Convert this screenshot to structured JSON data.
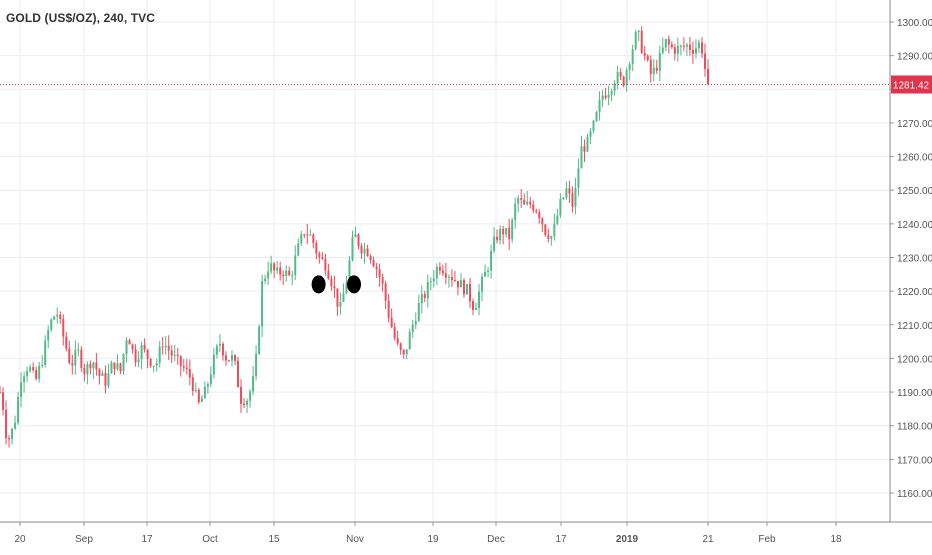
{
  "header": {
    "title": "GOLD (US$/OZ), 240, TVC"
  },
  "colors": {
    "up": "#53b987",
    "down": "#eb4d5c",
    "grid": "#e9edf2",
    "axis": "#555555",
    "price_line": "#e0344c"
  },
  "chart_data": {
    "type": "candlestick",
    "title": "GOLD (US$/OZ), 240, TVC",
    "ylim": [
      1155,
      1305
    ],
    "y_ticks": [
      "1160.00",
      "1170.00",
      "1180.00",
      "1190.00",
      "1200.00",
      "1210.00",
      "1220.00",
      "1230.00",
      "1240.00",
      "1250.00",
      "1260.00",
      "1270.00",
      "1280.00",
      "1290.00",
      "1300.00"
    ],
    "x_ticks": [
      "20",
      "Sep",
      "17",
      "Oct",
      "15",
      "Nov",
      "19",
      "Dec",
      "17",
      "2019",
      "21",
      "Feb",
      "18"
    ],
    "last_price": "1281.42",
    "grid": true,
    "close_path": [
      [
        0,
        1190
      ],
      [
        0.5,
        1185
      ],
      [
        1,
        1175
      ],
      [
        2,
        1180
      ],
      [
        3,
        1195
      ],
      [
        4,
        1198
      ],
      [
        5,
        1193
      ],
      [
        6,
        1200
      ],
      [
        7,
        1210
      ],
      [
        8,
        1214
      ],
      [
        9,
        1206
      ],
      [
        10,
        1198
      ],
      [
        11,
        1202
      ],
      [
        12,
        1196
      ],
      [
        13,
        1200
      ],
      [
        14,
        1195
      ],
      [
        15,
        1193
      ],
      [
        16,
        1199
      ],
      [
        17,
        1196
      ],
      [
        18,
        1208
      ],
      [
        19,
        1200
      ],
      [
        20,
        1203
      ],
      [
        21,
        1200
      ],
      [
        22,
        1198
      ],
      [
        23,
        1205
      ],
      [
        24,
        1202
      ],
      [
        25,
        1199
      ],
      [
        26,
        1197
      ],
      [
        27,
        1194
      ],
      [
        28,
        1186
      ],
      [
        29,
        1190
      ],
      [
        30,
        1198
      ],
      [
        31,
        1205
      ],
      [
        32,
        1200
      ],
      [
        33,
        1200
      ],
      [
        34,
        1188
      ],
      [
        35,
        1188
      ],
      [
        36,
        1195
      ],
      [
        37,
        1222
      ],
      [
        38,
        1228
      ],
      [
        39,
        1225
      ],
      [
        40,
        1226
      ],
      [
        41,
        1224
      ],
      [
        42,
        1232
      ],
      [
        43,
        1238
      ],
      [
        44,
        1236
      ],
      [
        45,
        1230
      ],
      [
        46,
        1228
      ],
      [
        47,
        1222
      ],
      [
        48,
        1214
      ],
      [
        49,
        1224
      ],
      [
        50,
        1237
      ],
      [
        51,
        1233
      ],
      [
        52,
        1232
      ],
      [
        53,
        1228
      ],
      [
        54,
        1222
      ],
      [
        55,
        1212
      ],
      [
        56,
        1204
      ],
      [
        57,
        1200
      ],
      [
        58,
        1208
      ],
      [
        59,
        1215
      ],
      [
        60,
        1219
      ],
      [
        61,
        1224
      ],
      [
        62,
        1228
      ],
      [
        63,
        1226
      ],
      [
        64,
        1224
      ],
      [
        65,
        1222
      ],
      [
        66,
        1220
      ],
      [
        67,
        1215
      ],
      [
        68,
        1222
      ],
      [
        69,
        1228
      ],
      [
        70,
        1236
      ],
      [
        71,
        1238
      ],
      [
        72,
        1236
      ],
      [
        73,
        1248
      ],
      [
        74,
        1245
      ],
      [
        75,
        1246
      ],
      [
        76,
        1244
      ],
      [
        77,
        1238
      ],
      [
        78,
        1236
      ],
      [
        79,
        1245
      ],
      [
        80,
        1250
      ],
      [
        81,
        1245
      ],
      [
        82,
        1262
      ],
      [
        83,
        1264
      ],
      [
        84,
        1270
      ],
      [
        85,
        1278
      ],
      [
        86,
        1280
      ],
      [
        87,
        1284
      ],
      [
        88,
        1282
      ],
      [
        89,
        1290
      ],
      [
        90,
        1297
      ],
      [
        91,
        1290
      ],
      [
        92,
        1284
      ],
      [
        93,
        1288
      ],
      [
        94,
        1294
      ],
      [
        95,
        1292
      ],
      [
        96,
        1292
      ],
      [
        97,
        1293
      ],
      [
        98,
        1292
      ],
      [
        99,
        1294
      ],
      [
        99.5,
        1287
      ],
      [
        100,
        1281.42
      ]
    ],
    "markers": [
      {
        "x": 45,
        "y": 1222
      },
      {
        "x": 50,
        "y": 1222
      }
    ]
  }
}
